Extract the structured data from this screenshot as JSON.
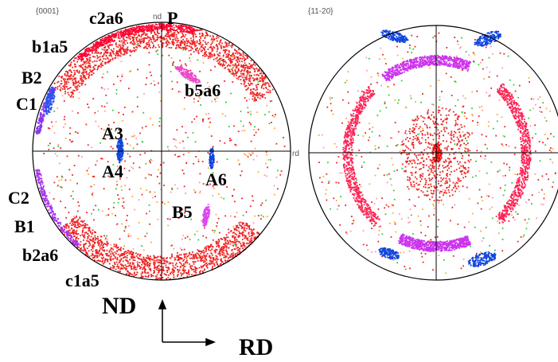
{
  "figures": [
    {
      "title": "{0001}",
      "nd_label": "nd",
      "rd_label": "rd",
      "labels": [
        "c2a6",
        "P",
        "b1a5",
        "B2",
        "C1",
        "b5a6",
        "A3",
        "A4",
        "A6",
        "C2",
        "B1",
        "B5",
        "b2a6",
        "c1a5"
      ]
    },
    {
      "title": "{11-20}"
    }
  ],
  "axes": {
    "vertical": "ND",
    "horizontal": "RD"
  }
}
